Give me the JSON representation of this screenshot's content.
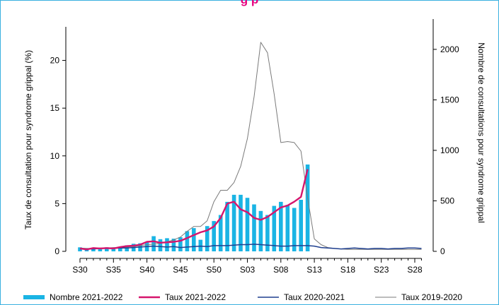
{
  "colors": {
    "bars": "#1ab4e4",
    "taux_2021_2022": "#d6156d",
    "taux_2020_2021": "#1f3f8f",
    "taux_2019_2020": "#7a7a7a",
    "frame": "#3ab0e0",
    "title": "#e6007e"
  },
  "chart_data": {
    "type": "bar+line",
    "title": "",
    "visible_title_fragment": "g      p",
    "ylabel_left": "Taux de consultation pour syndrome grippal (%)",
    "ylabel_right": "Nombre de consultations pour syndrome grippal",
    "xlabel": "",
    "weeks": [
      "S30",
      "S31",
      "S32",
      "S33",
      "S34",
      "S35",
      "S36",
      "S37",
      "S38",
      "S39",
      "S40",
      "S41",
      "S42",
      "S43",
      "S44",
      "S45",
      "S46",
      "S47",
      "S48",
      "S49",
      "S50",
      "S51",
      "S52",
      "S01",
      "S02",
      "S03",
      "S04",
      "S05",
      "S06",
      "S07",
      "S08",
      "S09",
      "S10",
      "S11",
      "S12",
      "S13",
      "S14",
      "S15",
      "S16",
      "S17",
      "S18",
      "S19",
      "S20",
      "S21",
      "S22",
      "S23",
      "S24",
      "S25",
      "S26",
      "S27",
      "S28",
      "S29"
    ],
    "x_tick_labels": [
      "S30",
      "S35",
      "S40",
      "S45",
      "S50",
      "S03",
      "S08",
      "S13",
      "S18",
      "S23",
      "S28"
    ],
    "ylim_left": [
      0,
      23
    ],
    "yticks_left": [
      "0",
      "5",
      "10",
      "15",
      "20"
    ],
    "ylim_right": [
      0,
      2300
    ],
    "yticks_right": [
      "0",
      "500",
      "1000",
      "1500",
      "2000"
    ],
    "grid": false,
    "legend_placement": "bottom",
    "series": [
      {
        "name": "Nombre 2021-2022",
        "type": "bar",
        "axis": "right",
        "start": 0,
        "values": [
          40,
          25,
          30,
          30,
          40,
          35,
          45,
          60,
          75,
          80,
          90,
          150,
          120,
          130,
          125,
          140,
          200,
          230,
          115,
          250,
          300,
          360,
          490,
          560,
          560,
          530,
          465,
          400,
          360,
          450,
          490,
          460,
          430,
          510,
          860
        ]
      },
      {
        "name": "Taux 2021-2022",
        "type": "line",
        "axis": "left",
        "start": 0,
        "values": [
          0.3,
          0.2,
          0.35,
          0.3,
          0.35,
          0.3,
          0.45,
          0.55,
          0.6,
          0.7,
          1.0,
          1.05,
          0.9,
          0.95,
          1.0,
          1.1,
          1.4,
          1.7,
          2.0,
          2.2,
          2.6,
          3.5,
          5.0,
          5.2,
          4.4,
          4.1,
          3.5,
          3.3,
          3.6,
          4.1,
          4.6,
          4.8,
          5.2,
          5.7,
          8.6
        ]
      },
      {
        "name": "Taux 2020-2021",
        "type": "line",
        "axis": "left",
        "start": 0,
        "values": [
          0.25,
          0.25,
          0.25,
          0.3,
          0.3,
          0.3,
          0.35,
          0.35,
          0.4,
          0.45,
          0.5,
          0.55,
          0.5,
          0.45,
          0.5,
          0.4,
          0.45,
          0.5,
          0.55,
          0.5,
          0.6,
          0.6,
          0.6,
          0.65,
          0.7,
          0.7,
          0.75,
          0.7,
          0.65,
          0.6,
          0.55,
          0.55,
          0.6,
          0.6,
          0.6,
          0.55,
          0.4,
          0.35,
          0.3,
          0.25,
          0.3,
          0.35,
          0.3,
          0.25,
          0.3,
          0.3,
          0.25,
          0.3,
          0.3,
          0.35,
          0.35,
          0.3
        ]
      },
      {
        "name": "Taux 2019-2020",
        "type": "line",
        "axis": "left",
        "start": 0,
        "values": [
          0.35,
          0.3,
          0.3,
          0.35,
          0.35,
          0.4,
          0.4,
          0.45,
          0.5,
          0.6,
          0.7,
          0.75,
          0.85,
          1.0,
          1.2,
          1.5,
          2.1,
          2.6,
          2.6,
          3.2,
          5.2,
          6.4,
          6.4,
          7.2,
          8.9,
          11.8,
          16.2,
          21.9,
          20.8,
          16.5,
          11.4,
          11.5,
          11.4,
          10.5,
          5.6,
          1.3,
          0.7,
          0.4,
          0.3,
          0.25,
          0.2,
          0.2,
          0.2,
          0.2,
          0.2,
          0.2,
          0.2,
          0.2,
          0.2,
          0.2,
          0.2,
          0.2
        ]
      }
    ],
    "legend": [
      {
        "label": "Nombre 2021-2022",
        "kind": "bar"
      },
      {
        "label": "Taux 2021-2022",
        "kind": "line"
      },
      {
        "label": "Taux 2020-2021",
        "kind": "line"
      },
      {
        "label": "Taux 2019-2020",
        "kind": "line"
      }
    ]
  }
}
